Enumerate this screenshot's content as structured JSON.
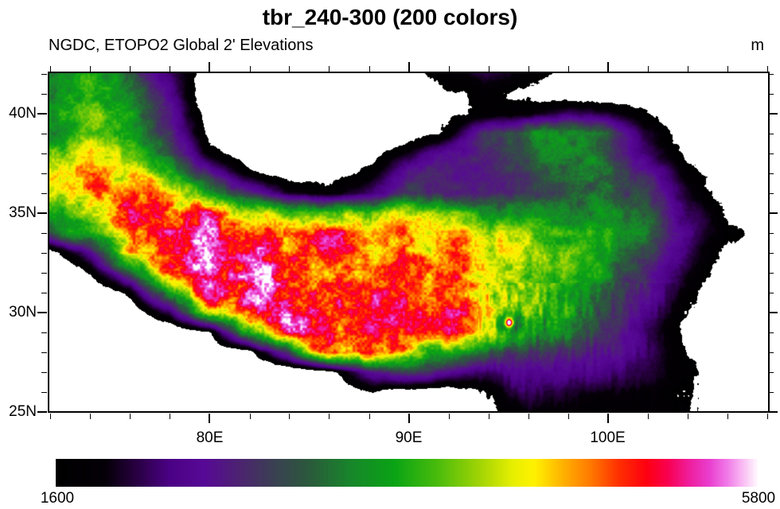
{
  "title": "tbr_240-300 (200 colors)",
  "subtitle_left": "NGDC, ETOPO2 Global 2' Elevations",
  "units_label": "m",
  "chart_data": {
    "type": "heatmap",
    "title": "tbr_240-300 (200 colors)",
    "subtitle": "NGDC, ETOPO2 Global 2' Elevations",
    "units": "m",
    "x_axis": {
      "range_deg_east": [
        71.9,
        108.1
      ],
      "major_ticks": [
        {
          "value": 80,
          "label": "80E"
        },
        {
          "value": 90,
          "label": "90E"
        },
        {
          "value": 100,
          "label": "100E"
        }
      ],
      "minor_step_deg": 2
    },
    "y_axis": {
      "range_deg_north": [
        25.0,
        42.08
      ],
      "major_ticks": [
        {
          "value": 25,
          "label": "25N"
        },
        {
          "value": 30,
          "label": "30N"
        },
        {
          "value": 35,
          "label": "35N"
        },
        {
          "value": 40,
          "label": "40N"
        }
      ],
      "minor_step_deg": 1
    },
    "colorbar": {
      "min": 1600,
      "max": 5800,
      "min_label": "1600",
      "max_label": "5800",
      "below_min_color": "#ffffff",
      "stops": [
        [
          0.0,
          "#000000"
        ],
        [
          0.07,
          "#050008"
        ],
        [
          0.11,
          "#26003d"
        ],
        [
          0.16,
          "#4b0184"
        ],
        [
          0.21,
          "#570996"
        ],
        [
          0.26,
          "#4d2371"
        ],
        [
          0.31,
          "#3a4152"
        ],
        [
          0.36,
          "#2b5a3c"
        ],
        [
          0.42,
          "#17872a"
        ],
        [
          0.48,
          "#0aa315"
        ],
        [
          0.54,
          "#47bb0c"
        ],
        [
          0.6,
          "#9ed305"
        ],
        [
          0.65,
          "#e8ef00"
        ],
        [
          0.68,
          "#fff200"
        ],
        [
          0.72,
          "#ffb300"
        ],
        [
          0.76,
          "#ff7a00"
        ],
        [
          0.8,
          "#ff3000"
        ],
        [
          0.84,
          "#fe0011"
        ],
        [
          0.87,
          "#f9004f"
        ],
        [
          0.9,
          "#ef1d9a"
        ],
        [
          0.93,
          "#e93fd0"
        ],
        [
          0.955,
          "#f07ae8"
        ],
        [
          0.975,
          "#f9b6f2"
        ],
        [
          1.0,
          "#ffffff"
        ]
      ]
    },
    "elevation_grid": {
      "description": "Estimated mean elevation control grid read from the raster (meters/100)",
      "lon_start": 72,
      "lon_step": 2,
      "lat_start": 42,
      "lat_step": -1,
      "values": [
        [
          34,
          36,
          30,
          22,
          13,
          11,
          10,
          10,
          11,
          13,
          19,
          21,
          18,
          14,
          12,
          12,
          14,
          15,
          12
        ],
        [
          36,
          39,
          34,
          24,
          12,
          10,
          10,
          10,
          10,
          12,
          16,
          17,
          15,
          13,
          12,
          13,
          15,
          14,
          12
        ],
        [
          37,
          40,
          36,
          26,
          13,
          10,
          10,
          10,
          10,
          12,
          15,
          17,
          19,
          22,
          20,
          16,
          13,
          12,
          11
        ],
        [
          35,
          38,
          36,
          28,
          14,
          11,
          10,
          10,
          11,
          13,
          17,
          30,
          33,
          34,
          30,
          20,
          14,
          12,
          11
        ],
        [
          40,
          42,
          38,
          30,
          18,
          12,
          11,
          12,
          14,
          20,
          26,
          27,
          30,
          34,
          30,
          22,
          15,
          12,
          11
        ],
        [
          44,
          46,
          44,
          36,
          26,
          18,
          14,
          14,
          17,
          26,
          27,
          27,
          28,
          32,
          34,
          26,
          18,
          13,
          12
        ],
        [
          42,
          46,
          48,
          44,
          36,
          28,
          20,
          18,
          22,
          28,
          27,
          27,
          28,
          30,
          34,
          28,
          20,
          14,
          13
        ],
        [
          36,
          44,
          50,
          52,
          50,
          46,
          42,
          40,
          42,
          44,
          40,
          36,
          34,
          34,
          36,
          30,
          22,
          16,
          14
        ],
        [
          30,
          38,
          50,
          54,
          52,
          50,
          50,
          48,
          48,
          48,
          46,
          42,
          40,
          38,
          36,
          32,
          24,
          17,
          14
        ],
        [
          14,
          24,
          46,
          54,
          55,
          53,
          50,
          50,
          50,
          48,
          48,
          44,
          42,
          40,
          34,
          30,
          22,
          15,
          13
        ],
        [
          11,
          16,
          30,
          50,
          55,
          54,
          52,
          50,
          50,
          50,
          48,
          46,
          42,
          38,
          34,
          28,
          20,
          13,
          12
        ],
        [
          10,
          11,
          18,
          36,
          52,
          55,
          54,
          52,
          50,
          50,
          48,
          46,
          40,
          36,
          32,
          26,
          18,
          12,
          11
        ],
        [
          10,
          10,
          12,
          22,
          44,
          54,
          54,
          52,
          50,
          50,
          50,
          46,
          42,
          36,
          30,
          24,
          16,
          11,
          11
        ],
        [
          10,
          10,
          10,
          11,
          16,
          40,
          52,
          52,
          50,
          48,
          48,
          44,
          38,
          34,
          28,
          22,
          15,
          12,
          12
        ],
        [
          10,
          10,
          10,
          10,
          12,
          14,
          30,
          52,
          52,
          44,
          36,
          30,
          28,
          28,
          26,
          22,
          16,
          13,
          13
        ],
        [
          10,
          10,
          10,
          10,
          10,
          10,
          11,
          14,
          26,
          30,
          24,
          22,
          24,
          24,
          22,
          20,
          17,
          14,
          14
        ],
        [
          10,
          10,
          10,
          10,
          10,
          10,
          10,
          11,
          16,
          14,
          13,
          17,
          22,
          20,
          19,
          18,
          16,
          14,
          13
        ],
        [
          10,
          10,
          10,
          10,
          10,
          10,
          10,
          11,
          12,
          12,
          12,
          15,
          19,
          18,
          17,
          18,
          17,
          13,
          13
        ],
        [
          10,
          10,
          10,
          10,
          10,
          10,
          10,
          10,
          11,
          11,
          12,
          14,
          17,
          17,
          16,
          17,
          16,
          13,
          12
        ]
      ]
    }
  }
}
